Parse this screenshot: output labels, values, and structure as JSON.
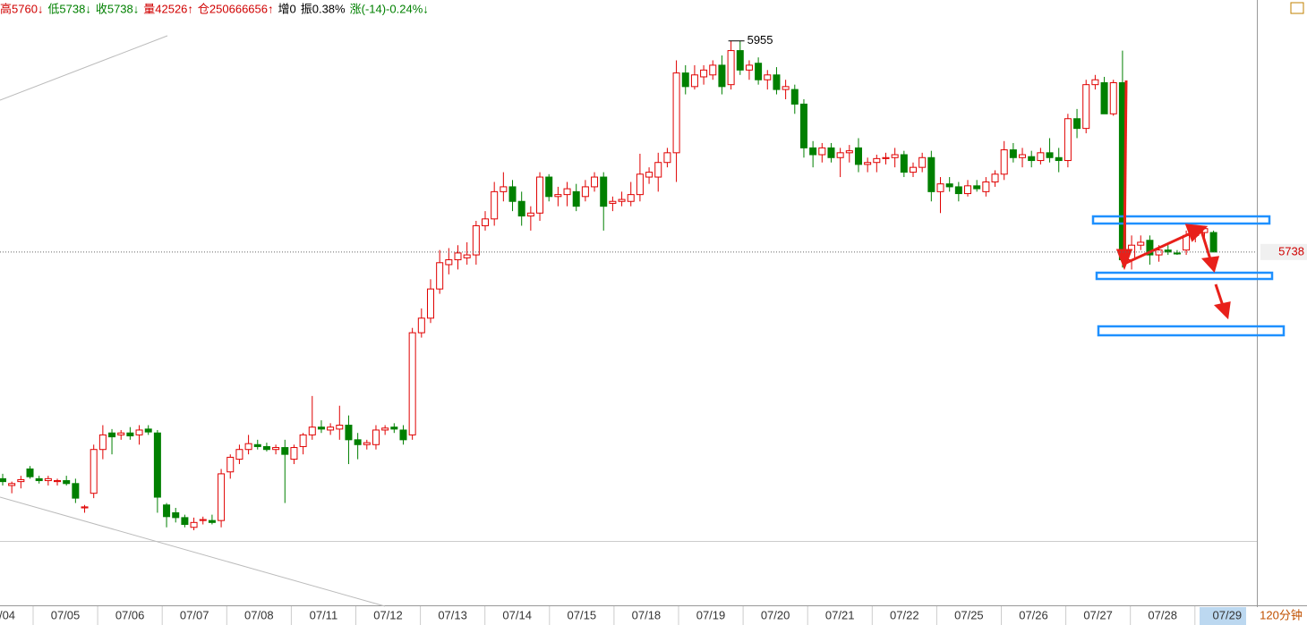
{
  "chart_data": {
    "type": "candlestick",
    "header": [
      {
        "text": "高5760↓",
        "color": "#d00000"
      },
      {
        "text": "低5738↓",
        "color": "#008000"
      },
      {
        "text": "收5738↓",
        "color": "#008000"
      },
      {
        "text": "量42526↑",
        "color": "#d00000"
      },
      {
        "text": "仓250666656↑",
        "color": "#d00000"
      },
      {
        "text": "增0",
        "color": "#000000"
      },
      {
        "text": "振0.38%",
        "color": "#000000"
      },
      {
        "text": "涨(-14)-0.24%↓",
        "color": "#008000"
      }
    ],
    "period": "120分钟",
    "ylim": [
      5441,
      5997
    ],
    "up_color": "#e00000",
    "down_color": "#008000",
    "x_labels": [
      "/04",
      "07/05",
      "07/06",
      "07/07",
      "07/08",
      "07/11",
      "07/12",
      "07/13",
      "07/14",
      "07/15",
      "07/18",
      "07/19",
      "07/20",
      "07/21",
      "07/22",
      "07/25",
      "07/26",
      "07/27",
      "07/28",
      "07/29"
    ],
    "annotations": {
      "high": 5955,
      "last": 5738
    },
    "open": [
      5505,
      5498,
      5502,
      5515,
      5505,
      5503,
      5502,
      5503,
      5500,
      5475,
      5490,
      5535,
      5552,
      5550,
      5552,
      5550,
      5556,
      5552,
      5478,
      5470,
      5465,
      5455,
      5462,
      5462,
      5462,
      5512,
      5525,
      5535,
      5540,
      5538,
      5535,
      5537,
      5525,
      5538,
      5550,
      5558,
      5555,
      5556,
      5560,
      5545,
      5540,
      5540,
      5555,
      5558,
      5555,
      5550,
      5655,
      5670,
      5700,
      5725,
      5730,
      5732,
      5735,
      5765,
      5772,
      5800,
      5805,
      5790,
      5775,
      5778,
      5815,
      5795,
      5797,
      5800,
      5795,
      5805,
      5815,
      5788,
      5790,
      5790,
      5797,
      5815,
      5815,
      5830,
      5840,
      5922,
      5908,
      5918,
      5920,
      5930,
      5910,
      5945,
      5925,
      5932,
      5915,
      5920,
      5905,
      5905,
      5890,
      5845,
      5838,
      5845,
      5835,
      5840,
      5845,
      5828,
      5830,
      5834,
      5835,
      5838,
      5820,
      5825,
      5835,
      5800,
      5808,
      5805,
      5798,
      5806,
      5800,
      5810,
      5818,
      5843,
      5835,
      5836,
      5832,
      5840,
      5835,
      5832,
      5875,
      5865,
      5910,
      5912,
      5880,
      5912,
      5730,
      5745,
      5750,
      5735,
      5740,
      5737,
      5740,
      5755,
      5758,
      5758
    ],
    "high": [
      5510,
      5502,
      5508,
      5518,
      5508,
      5508,
      5505,
      5508,
      5505,
      5478,
      5540,
      5560,
      5556,
      5555,
      5558,
      5560,
      5560,
      5555,
      5480,
      5475,
      5468,
      5465,
      5466,
      5468,
      5515,
      5530,
      5540,
      5550,
      5545,
      5542,
      5540,
      5545,
      5540,
      5552,
      5590,
      5565,
      5562,
      5580,
      5570,
      5552,
      5545,
      5560,
      5560,
      5562,
      5560,
      5660,
      5680,
      5710,
      5740,
      5742,
      5745,
      5748,
      5770,
      5780,
      5810,
      5820,
      5812,
      5800,
      5785,
      5820,
      5818,
      5805,
      5810,
      5808,
      5812,
      5820,
      5820,
      5795,
      5800,
      5810,
      5839,
      5825,
      5840,
      5845,
      5935,
      5930,
      5930,
      5930,
      5935,
      5940,
      5955,
      5955,
      5935,
      5938,
      5925,
      5928,
      5915,
      5910,
      5895,
      5852,
      5850,
      5850,
      5845,
      5848,
      5855,
      5835,
      5838,
      5840,
      5845,
      5842,
      5830,
      5840,
      5842,
      5815,
      5815,
      5810,
      5812,
      5812,
      5815,
      5822,
      5852,
      5850,
      5845,
      5842,
      5845,
      5855,
      5845,
      5880,
      5885,
      5915,
      5920,
      5918,
      5915,
      5945,
      5755,
      5755,
      5755,
      5745,
      5745,
      5740,
      5760,
      5765,
      5765,
      5760
    ],
    "low": [
      5498,
      5490,
      5495,
      5505,
      5500,
      5498,
      5498,
      5498,
      5480,
      5470,
      5485,
      5525,
      5530,
      5545,
      5545,
      5540,
      5550,
      5470,
      5455,
      5460,
      5455,
      5452,
      5458,
      5458,
      5455,
      5505,
      5520,
      5530,
      5535,
      5533,
      5530,
      5480,
      5520,
      5530,
      5545,
      5552,
      5550,
      5545,
      5520,
      5525,
      5535,
      5535,
      5550,
      5552,
      5540,
      5545,
      5650,
      5665,
      5695,
      5715,
      5720,
      5725,
      5725,
      5760,
      5765,
      5790,
      5780,
      5765,
      5760,
      5770,
      5790,
      5785,
      5785,
      5780,
      5790,
      5800,
      5760,
      5780,
      5785,
      5785,
      5790,
      5808,
      5800,
      5825,
      5810,
      5900,
      5905,
      5910,
      5915,
      5900,
      5905,
      5920,
      5915,
      5910,
      5905,
      5900,
      5895,
      5880,
      5835,
      5825,
      5830,
      5830,
      5815,
      5830,
      5820,
      5820,
      5820,
      5828,
      5825,
      5815,
      5815,
      5820,
      5790,
      5778,
      5800,
      5790,
      5795,
      5800,
      5795,
      5805,
      5812,
      5830,
      5825,
      5825,
      5828,
      5830,
      5820,
      5825,
      5855,
      5860,
      5905,
      5880,
      5878,
      5722,
      5720,
      5740,
      5725,
      5728,
      5735,
      5735,
      5735,
      5748,
      5750,
      5738
    ],
    "close": [
      5502,
      5500,
      5504,
      5507,
      5503,
      5505,
      5503,
      5500,
      5485,
      5476,
      5535,
      5550,
      5548,
      5552,
      5549,
      5555,
      5553,
      5486,
      5466,
      5465,
      5458,
      5460,
      5463,
      5460,
      5510,
      5527,
      5535,
      5541,
      5538,
      5535,
      5537,
      5530,
      5537,
      5550,
      5558,
      5556,
      5558,
      5560,
      5545,
      5540,
      5542,
      5555,
      5557,
      5556,
      5545,
      5655,
      5670,
      5700,
      5727,
      5730,
      5737,
      5735,
      5765,
      5772,
      5800,
      5805,
      5790,
      5775,
      5778,
      5815,
      5795,
      5797,
      5803,
      5785,
      5805,
      5815,
      5785,
      5790,
      5792,
      5797,
      5818,
      5820,
      5830,
      5840,
      5922,
      5908,
      5920,
      5925,
      5930,
      5908,
      5945,
      5925,
      5930,
      5915,
      5920,
      5905,
      5908,
      5890,
      5845,
      5838,
      5845,
      5835,
      5840,
      5842,
      5828,
      5830,
      5834,
      5835,
      5838,
      5820,
      5825,
      5835,
      5800,
      5808,
      5805,
      5798,
      5806,
      5803,
      5810,
      5818,
      5843,
      5835,
      5838,
      5832,
      5840,
      5835,
      5832,
      5875,
      5865,
      5910,
      5915,
      5880,
      5912,
      5730,
      5745,
      5748,
      5735,
      5740,
      5738,
      5736,
      5755,
      5758,
      5762,
      5738
    ]
  }
}
